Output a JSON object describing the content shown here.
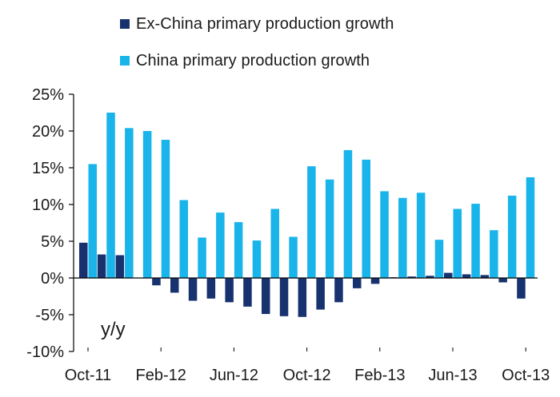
{
  "colors": {
    "ex_china": "#17326e",
    "china": "#18b4ea",
    "axis": "#000000"
  },
  "legend": {
    "series0_label": "Ex-China primary production growth",
    "series1_label": "China primary production growth"
  },
  "annotation": "y/y",
  "chart_data": {
    "type": "bar",
    "title": "",
    "xlabel": "",
    "ylabel": "",
    "ylim": [
      -10,
      25
    ],
    "yticks": [
      -10,
      -5,
      0,
      5,
      10,
      15,
      20,
      25
    ],
    "ytick_labels": [
      "-10%",
      "-5%",
      "0%",
      "5%",
      "10%",
      "15%",
      "20%",
      "25%"
    ],
    "categories": [
      "Oct-11",
      "Nov-11",
      "Dec-11",
      "Jan-12",
      "Feb-12",
      "Mar-12",
      "Apr-12",
      "May-12",
      "Jun-12",
      "Jul-12",
      "Aug-12",
      "Sep-12",
      "Oct-12",
      "Nov-12",
      "Dec-12",
      "Jan-13",
      "Feb-13",
      "Mar-13",
      "Apr-13",
      "May-13",
      "Jun-13",
      "Jul-13",
      "Aug-13",
      "Sep-13",
      "Oct-13"
    ],
    "xtick_labels": [
      {
        "category": "Oct-11",
        "label": "Oct-11"
      },
      {
        "category": "Feb-12",
        "label": "Feb-12"
      },
      {
        "category": "Jun-12",
        "label": "Jun-12"
      },
      {
        "category": "Oct-12",
        "label": "Oct-12"
      },
      {
        "category": "Feb-13",
        "label": "Feb-13"
      },
      {
        "category": "Jun-13",
        "label": "Jun-13"
      },
      {
        "category": "Oct-13",
        "label": "Oct-13"
      }
    ],
    "legend_position": "top",
    "grid": false,
    "series": [
      {
        "name": "Ex-China primary production growth",
        "values": [
          4.8,
          3.2,
          3.1,
          null,
          -1.0,
          -2.0,
          -3.1,
          -2.8,
          -3.3,
          -3.9,
          -4.9,
          -5.2,
          -5.3,
          -4.3,
          -3.3,
          -1.4,
          -0.8,
          0.1,
          0.2,
          0.3,
          0.7,
          0.5,
          0.4,
          -0.6,
          -2.8
        ]
      },
      {
        "name": "China primary production growth",
        "values": [
          15.5,
          22.5,
          20.4,
          20.0,
          18.8,
          10.6,
          5.5,
          8.9,
          7.6,
          5.1,
          9.4,
          5.6,
          15.2,
          13.4,
          17.4,
          16.1,
          11.8,
          10.9,
          11.6,
          5.2,
          9.4,
          10.1,
          6.5,
          11.2,
          13.7
        ]
      }
    ]
  }
}
